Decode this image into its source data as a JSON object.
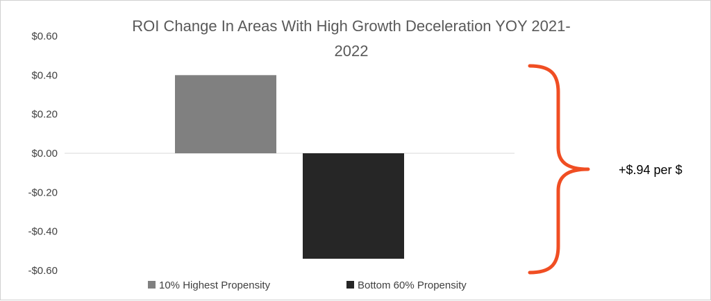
{
  "chart_data": {
    "type": "bar",
    "title_lines": [
      "ROI Change In Areas With High Growth Deceleration YOY 2021-",
      "2022"
    ],
    "categories": [
      ""
    ],
    "series": [
      {
        "name": "10% Highest Propensity",
        "values": [
          0.4
        ],
        "color": "#808080"
      },
      {
        "name": "Bottom 60% Propensity",
        "values": [
          -0.54
        ],
        "color": "#262626"
      }
    ],
    "ylim": [
      -0.6,
      0.6
    ],
    "yticks": [
      0.6,
      0.4,
      0.2,
      0.0,
      -0.2,
      -0.4,
      -0.6
    ],
    "ytick_labels": [
      "$0.60",
      "$0.40",
      "$0.20",
      "$0.00",
      "-$0.20",
      "-$0.40",
      "-$0.60"
    ],
    "grid": false,
    "legend_position": "bottom",
    "annotation": {
      "text": "+$.94 per $",
      "brace_color": "#f04e23"
    }
  }
}
